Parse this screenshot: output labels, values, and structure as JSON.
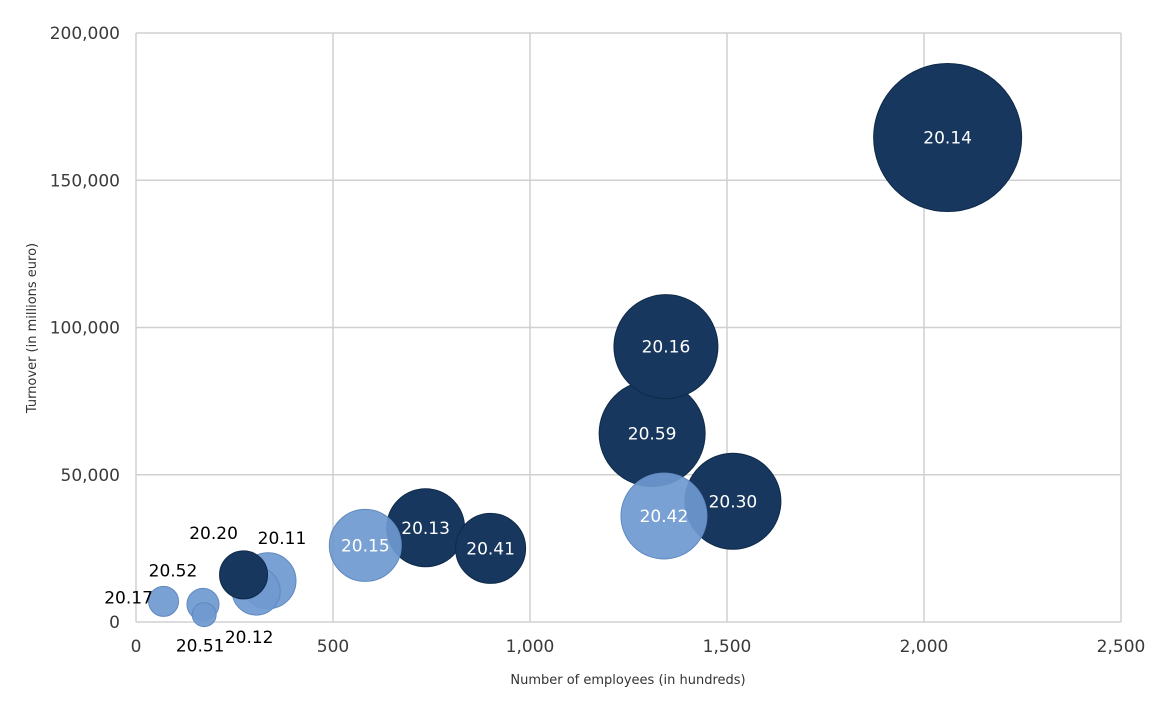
{
  "chart_data": {
    "type": "scatter",
    "subtype": "bubble",
    "title": "",
    "xlabel": "Number of employees (in hundreds)",
    "ylabel": "Turnover (in millions euro)",
    "xlim": [
      0,
      2500
    ],
    "ylim": [
      0,
      200000
    ],
    "x_ticks": [
      {
        "value": 0,
        "label": "0"
      },
      {
        "value": 500,
        "label": "500"
      },
      {
        "value": 1000,
        "label": "1,000"
      },
      {
        "value": 1500,
        "label": "1,500"
      },
      {
        "value": 2000,
        "label": "2,000"
      },
      {
        "value": 2500,
        "label": "2,500"
      }
    ],
    "y_ticks": [
      {
        "value": 0,
        "label": "0"
      },
      {
        "value": 50000,
        "label": "50,000"
      },
      {
        "value": 100000,
        "label": "100,000"
      },
      {
        "value": 150000,
        "label": "150,000"
      },
      {
        "value": 200000,
        "label": "200,000"
      }
    ],
    "grid": true,
    "legend": "none",
    "colors": {
      "dark": "#17375e",
      "light": "#6f99cf",
      "grid": "#d0d0d0"
    },
    "points": [
      {
        "label": "20.14",
        "x": 2060,
        "y": 164500,
        "size": 74,
        "color": "dark",
        "label_pos": "center"
      },
      {
        "label": "20.16",
        "x": 1345,
        "y": 93500,
        "size": 52,
        "color": "dark",
        "label_pos": "center"
      },
      {
        "label": "20.59",
        "x": 1310,
        "y": 64000,
        "size": 53,
        "color": "dark",
        "label_pos": "center"
      },
      {
        "label": "20.30",
        "x": 1515,
        "y": 41000,
        "size": 48,
        "color": "dark",
        "label_pos": "center"
      },
      {
        "label": "20.42",
        "x": 1340,
        "y": 36000,
        "size": 43,
        "color": "light",
        "label_pos": "center"
      },
      {
        "label": "20.13",
        "x": 735,
        "y": 32000,
        "size": 39,
        "color": "dark",
        "label_pos": "center"
      },
      {
        "label": "20.41",
        "x": 900,
        "y": 25000,
        "size": 35,
        "color": "dark",
        "label_pos": "center"
      },
      {
        "label": "20.15",
        "x": 582,
        "y": 26000,
        "size": 36,
        "color": "light",
        "label_pos": "center"
      },
      {
        "label": "20.11",
        "x": 335,
        "y": 14000,
        "size": 28,
        "color": "light",
        "label_pos": "above-right"
      },
      {
        "label": "20.12",
        "x": 305,
        "y": 10500,
        "size": 24,
        "color": "light",
        "label_pos": "below-right"
      },
      {
        "label": "20.20",
        "x": 273,
        "y": 16000,
        "size": 24,
        "color": "dark",
        "label_pos": "above-left"
      },
      {
        "label": "20.52",
        "x": 170,
        "y": 6000,
        "size": 16,
        "color": "light",
        "label_pos": "above-left"
      },
      {
        "label": "20.51",
        "x": 173,
        "y": 2500,
        "size": 12,
        "color": "light",
        "label_pos": "below"
      },
      {
        "label": "20.17",
        "x": 70,
        "y": 7000,
        "size": 15,
        "color": "light",
        "label_pos": "left"
      }
    ]
  }
}
